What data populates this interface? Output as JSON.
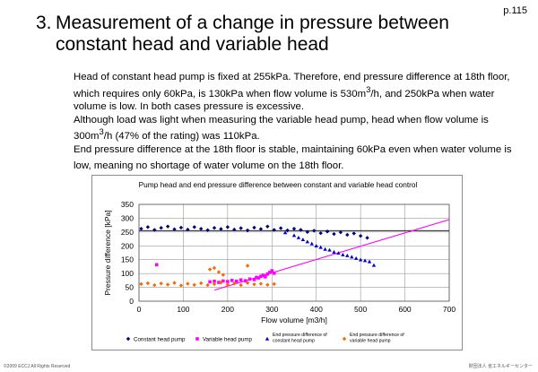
{
  "page": {
    "number": "p.115"
  },
  "slide": {
    "title_number": "3.",
    "title": "Measurement of a change in pressure between constant head and variable head",
    "paragraphs": [
      {
        "pre": "Head of constant head pump is fixed at 255kPa. Therefore, end pressure difference at 18th floor, which requires only 60kPa, is 130kPa when flow volume is 530m",
        "sup": "3",
        "post": "/h, and 250kPa when water volume is low. In both cases pressure is excessive."
      },
      {
        "pre": "Although load was light when measuring the variable head pump, head when flow volume is 300m",
        "sup": "3",
        "post": "/h (47% of the rating) was 110kPa."
      },
      {
        "pre": "End pressure difference at the 18th floor is stable, maintaining 60kPa even when water volume is low, meaning no shortage of water volume on the 18th floor.",
        "sup": "",
        "post": ""
      }
    ]
  },
  "chart_data": {
    "type": "scatter",
    "title": "Pump head and end pressure difference between constant and variable head control",
    "xlabel": "Flow volume [m3/h]",
    "ylabel": "Pressure difference [kPa]",
    "xlim": [
      0,
      700
    ],
    "ylim": [
      0,
      350
    ],
    "x_ticks": [
      0,
      100,
      200,
      300,
      400,
      500,
      600,
      700
    ],
    "y_ticks": [
      0,
      50,
      100,
      150,
      200,
      250,
      300,
      350
    ],
    "grid": true,
    "legend_position": "bottom",
    "reference_lines": [
      {
        "name": "Constant head pump setting",
        "y": 255,
        "x_range": [
          0,
          700
        ],
        "color": "#000000"
      },
      {
        "name": "Variable head pump curve",
        "points": [
          [
            170,
            40
          ],
          [
            700,
            295
          ]
        ],
        "color": "#ff00ff"
      }
    ],
    "series": [
      {
        "name": "Constant head pump",
        "color": "#000080",
        "marker": "diamond",
        "points": [
          [
            5,
            262
          ],
          [
            20,
            268
          ],
          [
            35,
            258
          ],
          [
            50,
            265
          ],
          [
            65,
            270
          ],
          [
            80,
            260
          ],
          [
            95,
            266
          ],
          [
            110,
            259
          ],
          [
            125,
            268
          ],
          [
            140,
            262
          ],
          [
            155,
            257
          ],
          [
            170,
            265
          ],
          [
            185,
            261
          ],
          [
            200,
            268
          ],
          [
            215,
            259
          ],
          [
            230,
            264
          ],
          [
            245,
            256
          ],
          [
            260,
            266
          ],
          [
            275,
            261
          ],
          [
            290,
            270
          ],
          [
            305,
            258
          ],
          [
            320,
            264
          ],
          [
            335,
            256
          ],
          [
            350,
            262
          ],
          [
            365,
            258
          ],
          [
            380,
            250
          ],
          [
            395,
            255
          ],
          [
            410,
            246
          ],
          [
            425,
            252
          ],
          [
            440,
            243
          ],
          [
            455,
            249
          ],
          [
            470,
            240
          ],
          [
            485,
            245
          ],
          [
            500,
            236
          ],
          [
            515,
            229
          ]
        ]
      },
      {
        "name": "Variable head pump",
        "color": "#ff00ff",
        "marker": "square",
        "points": [
          [
            40,
            132
          ],
          [
            160,
            70
          ],
          [
            170,
            72
          ],
          [
            180,
            68
          ],
          [
            190,
            73
          ],
          [
            200,
            71
          ],
          [
            210,
            75
          ],
          [
            220,
            72
          ],
          [
            230,
            77
          ],
          [
            240,
            74
          ],
          [
            250,
            80
          ],
          [
            260,
            78
          ],
          [
            265,
            86
          ],
          [
            270,
            84
          ],
          [
            275,
            90
          ],
          [
            280,
            93
          ],
          [
            285,
            88
          ],
          [
            290,
            98
          ],
          [
            295,
            104
          ],
          [
            300,
            110
          ],
          [
            305,
            101
          ]
        ]
      },
      {
        "name": "End pressure difference of constant head pump",
        "color": "#0000cc",
        "marker": "triangle",
        "points": [
          [
            330,
            248
          ],
          [
            350,
            238
          ],
          [
            360,
            230
          ],
          [
            370,
            223
          ],
          [
            380,
            215
          ],
          [
            390,
            208
          ],
          [
            400,
            200
          ],
          [
            410,
            195
          ],
          [
            420,
            188
          ],
          [
            430,
            185
          ],
          [
            440,
            178
          ],
          [
            450,
            174
          ],
          [
            460,
            168
          ],
          [
            470,
            165
          ],
          [
            480,
            160
          ],
          [
            490,
            155
          ],
          [
            500,
            150
          ],
          [
            510,
            147
          ],
          [
            520,
            143
          ],
          [
            530,
            130
          ]
        ]
      },
      {
        "name": "End pressure difference of variable head pump",
        "color": "#ff6600",
        "marker": "diamond",
        "points": [
          [
            5,
            62
          ],
          [
            20,
            65
          ],
          [
            35,
            58
          ],
          [
            50,
            64
          ],
          [
            65,
            60
          ],
          [
            80,
            66
          ],
          [
            95,
            57
          ],
          [
            110,
            63
          ],
          [
            125,
            59
          ],
          [
            140,
            65
          ],
          [
            155,
            58
          ],
          [
            170,
            62
          ],
          [
            185,
            67
          ],
          [
            200,
            60
          ],
          [
            215,
            64
          ],
          [
            230,
            58
          ],
          [
            245,
            66
          ],
          [
            260,
            61
          ],
          [
            275,
            63
          ],
          [
            290,
            59
          ],
          [
            305,
            62
          ],
          [
            170,
            120
          ],
          [
            180,
            105
          ],
          [
            190,
            95
          ],
          [
            160,
            115
          ],
          [
            245,
            128
          ]
        ]
      }
    ]
  },
  "legend": [
    {
      "label": "Constant head pump"
    },
    {
      "label": "Variable head pump"
    },
    {
      "label": "End pressure difference of constant head pump"
    },
    {
      "label": "End pressure difference of variable head pump"
    }
  ],
  "footer": {
    "left": "©2009 ECCJ All Rights Reserved",
    "right": "財団法人 省エネルギーセンター"
  }
}
